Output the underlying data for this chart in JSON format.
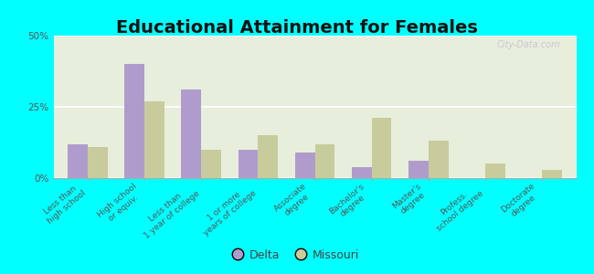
{
  "title": "Educational Attainment for Females",
  "categories": [
    "Less than\nhigh school",
    "High school\nor equiv.",
    "Less than\n1 year of college",
    "1 or more\nyears of college",
    "Associate\ndegree",
    "Bachelor's\ndegree",
    "Master's\ndegree",
    "Profess.\nschool degree",
    "Doctorate\ndegree"
  ],
  "delta_values": [
    12,
    40,
    31,
    10,
    9,
    4,
    6,
    0,
    0
  ],
  "missouri_values": [
    11,
    27,
    10,
    15,
    12,
    21,
    13,
    5,
    3
  ],
  "delta_color": "#b09ccc",
  "missouri_color": "#c8cc9c",
  "background_color": "#00ffff",
  "ylim": [
    0,
    50
  ],
  "yticks": [
    0,
    25,
    50
  ],
  "ytick_labels": [
    "0%",
    "25%",
    "50%"
  ],
  "legend_labels": [
    "Delta",
    "Missouri"
  ],
  "bar_width": 0.35,
  "title_fontsize": 14,
  "tick_fontsize": 6.5
}
